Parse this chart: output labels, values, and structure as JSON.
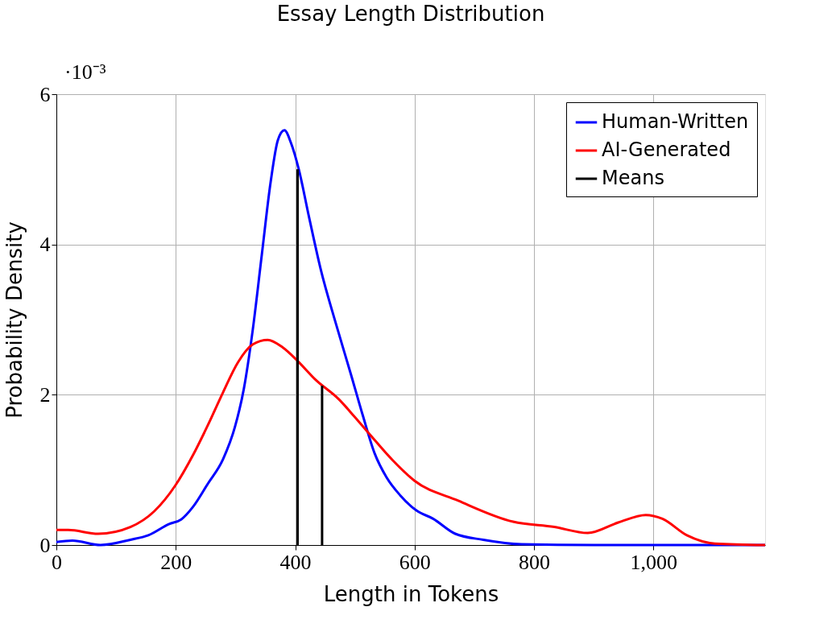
{
  "chart_data": {
    "type": "line",
    "title": "Essay Length Distribution",
    "xlabel": "Length in Tokens",
    "ylabel": "Probability Density",
    "annotations": [
      "·10⁻³"
    ],
    "xlim": [
      0,
      1187
    ],
    "xticks": [
      0,
      200,
      400,
      600,
      800,
      {
        "value": 1000,
        "label": "1,000"
      }
    ],
    "ylim": [
      0,
      6
    ],
    "yticks": [
      0,
      2,
      4,
      6
    ],
    "grid": true,
    "legend": "top right",
    "line_style": "solid",
    "marker": "none",
    "series": [
      {
        "name": "Human-Written",
        "color": "#0000ff",
        "x": [
          0,
          27,
          74,
          124,
          154,
          189,
          209,
          229,
          254,
          279,
          299,
          314,
          329,
          344,
          359,
          371,
          382,
          393,
          406,
          423,
          443,
          468,
          493,
          513,
          533,
          553,
          576,
          603,
          631,
          668,
          715,
          779,
          900,
          1187
        ],
        "values": [
          0.04,
          0.06,
          0.0,
          0.07,
          0.13,
          0.28,
          0.34,
          0.51,
          0.82,
          1.14,
          1.57,
          2.08,
          2.87,
          3.86,
          4.84,
          5.39,
          5.52,
          5.35,
          5.0,
          4.37,
          3.66,
          2.95,
          2.28,
          1.73,
          1.22,
          0.9,
          0.66,
          0.46,
          0.35,
          0.15,
          0.07,
          0.01,
          0.0,
          0.0
        ]
      },
      {
        "name": "AI-Generated",
        "color": "#ff0000",
        "x": [
          0,
          20,
          70,
          124,
          164,
          199,
          229,
          254,
          279,
          304,
          329,
          354,
          379,
          404,
          434,
          473,
          498,
          523,
          563,
          599,
          673,
          765,
          834,
          890,
          941,
          987,
          1015,
          1056,
          1103,
          1187
        ],
        "values": [
          0.2,
          0.2,
          0.15,
          0.24,
          0.45,
          0.79,
          1.2,
          1.6,
          2.03,
          2.43,
          2.67,
          2.73,
          2.63,
          2.45,
          2.2,
          1.94,
          1.72,
          1.49,
          1.13,
          0.86,
          0.59,
          0.31,
          0.24,
          0.16,
          0.3,
          0.4,
          0.35,
          0.13,
          0.02,
          0.0
        ]
      },
      {
        "name": "Means",
        "type": "bar",
        "color": "#000000",
        "x": [
          404,
          445
        ],
        "values": [
          5.0,
          2.12
        ]
      }
    ]
  }
}
